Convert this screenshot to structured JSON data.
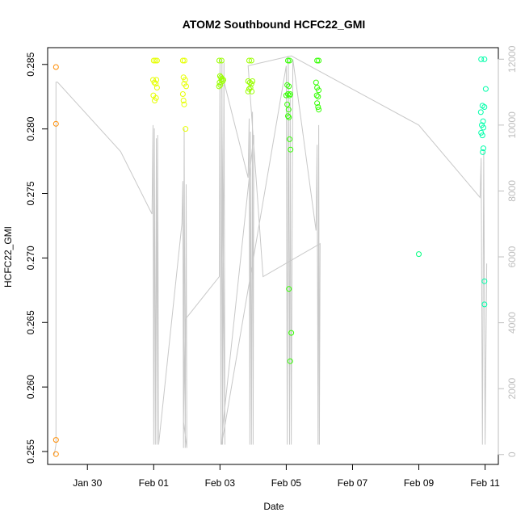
{
  "chart_data": {
    "type": "scatter",
    "title": "ATOM2 Southbound HCFC22_GMI",
    "xlabel": "Date",
    "ylabel": "HCFC22_GMI",
    "x_unit": "days",
    "x_ticks": [
      {
        "value": 30,
        "label": "Jan 30"
      },
      {
        "value": 32,
        "label": "Feb 01"
      },
      {
        "value": 34,
        "label": "Feb 03"
      },
      {
        "value": 36,
        "label": "Feb 05"
      },
      {
        "value": 38,
        "label": "Feb 07"
      },
      {
        "value": 40,
        "label": "Feb 09"
      },
      {
        "value": 42,
        "label": "Feb 11"
      }
    ],
    "xlim": [
      28.8,
      42.4
    ],
    "ylim": [
      0.254,
      0.2863
    ],
    "y_ticks": [
      0.255,
      0.26,
      0.265,
      0.27,
      0.275,
      0.28,
      0.285
    ],
    "y_tick_labels": [
      "0.255",
      "0.260",
      "0.265",
      "0.270",
      "0.275",
      "0.280",
      "0.285"
    ],
    "y2lim": [
      -300,
      12350
    ],
    "y2_ticks": [
      0,
      2000,
      4000,
      6000,
      8000,
      10000,
      12000
    ],
    "y2_tick_labels": [
      "0",
      "2000",
      "4000",
      "6000",
      "8000",
      "10000",
      "12000"
    ],
    "grid": false,
    "series": [
      {
        "color": "#ff8c00",
        "points": [
          [
            29.05,
            0.2848
          ],
          [
            29.05,
            0.2804
          ],
          [
            29.05,
            0.2559
          ],
          [
            29.05,
            0.2548
          ]
        ]
      },
      {
        "color": "#e6ff00",
        "points": [
          [
            32.0,
            0.2853
          ],
          [
            32.05,
            0.2853
          ],
          [
            32.1,
            0.2853
          ],
          [
            31.98,
            0.2838
          ],
          [
            32.02,
            0.2836
          ],
          [
            32.06,
            0.2835
          ],
          [
            32.1,
            0.2832
          ],
          [
            32.08,
            0.2838
          ],
          [
            31.99,
            0.2826
          ],
          [
            32.03,
            0.2822
          ],
          [
            32.07,
            0.2824
          ],
          [
            32.88,
            0.2853
          ],
          [
            32.93,
            0.2853
          ],
          [
            32.9,
            0.284
          ],
          [
            32.95,
            0.2838
          ],
          [
            32.92,
            0.2835
          ],
          [
            32.98,
            0.2833
          ],
          [
            32.88,
            0.2827
          ],
          [
            32.9,
            0.2822
          ],
          [
            32.92,
            0.2819
          ],
          [
            32.96,
            0.28
          ]
        ]
      },
      {
        "color": "#99ff00",
        "points": [
          [
            33.98,
            0.2853
          ],
          [
            34.05,
            0.2853
          ],
          [
            34.0,
            0.2841
          ],
          [
            34.03,
            0.284
          ],
          [
            34.06,
            0.2839
          ],
          [
            34.1,
            0.2838
          ],
          [
            33.99,
            0.2836
          ],
          [
            34.04,
            0.2838
          ],
          [
            34.08,
            0.2837
          ],
          [
            33.97,
            0.2833
          ],
          [
            34.01,
            0.2834
          ],
          [
            34.88,
            0.2853
          ],
          [
            34.95,
            0.2853
          ],
          [
            34.85,
            0.2837
          ],
          [
            34.9,
            0.2836
          ],
          [
            34.95,
            0.2835
          ],
          [
            34.98,
            0.2837
          ],
          [
            34.92,
            0.2832
          ],
          [
            34.88,
            0.2831
          ],
          [
            34.96,
            0.2829
          ],
          [
            34.85,
            0.2829
          ]
        ]
      },
      {
        "color": "#33ff00",
        "points": [
          [
            36.05,
            0.2853
          ],
          [
            36.1,
            0.2853
          ],
          [
            36.03,
            0.2834
          ],
          [
            36.08,
            0.2833
          ],
          [
            36.0,
            0.2826
          ],
          [
            36.05,
            0.2827
          ],
          [
            36.1,
            0.2826
          ],
          [
            36.03,
            0.2819
          ],
          [
            36.07,
            0.2815
          ],
          [
            36.05,
            0.281
          ],
          [
            36.08,
            0.2809
          ],
          [
            36.1,
            0.2792
          ],
          [
            36.13,
            0.2784
          ],
          [
            36.12,
            0.2827
          ],
          [
            36.08,
            0.2676
          ],
          [
            36.15,
            0.2642
          ],
          [
            36.12,
            0.262
          ],
          [
            36.93,
            0.2853
          ],
          [
            36.98,
            0.2853
          ],
          [
            36.9,
            0.2836
          ],
          [
            36.93,
            0.2832
          ],
          [
            36.98,
            0.283
          ],
          [
            36.92,
            0.2826
          ],
          [
            36.96,
            0.2825
          ],
          [
            36.93,
            0.282
          ],
          [
            36.96,
            0.2817
          ],
          [
            36.98,
            0.2815
          ]
        ]
      },
      {
        "color": "#00ff80",
        "points": [
          [
            40.0,
            0.2703
          ]
        ]
      },
      {
        "color": "#00ffaa",
        "points": [
          [
            41.88,
            0.2854
          ],
          [
            41.98,
            0.2854
          ],
          [
            42.02,
            0.2831
          ],
          [
            41.92,
            0.2818
          ],
          [
            41.98,
            0.2817
          ],
          [
            41.87,
            0.2813
          ],
          [
            41.94,
            0.2806
          ],
          [
            41.9,
            0.2803
          ],
          [
            41.95,
            0.2801
          ],
          [
            41.88,
            0.2797
          ],
          [
            41.92,
            0.2795
          ],
          [
            41.95,
            0.2785
          ],
          [
            41.93,
            0.2782
          ],
          [
            41.98,
            0.2682
          ],
          [
            41.98,
            0.2664
          ]
        ]
      }
    ],
    "altitude_series": {
      "color": "#c8c8c8",
      "x": [
        29.0,
        29.05,
        29.05,
        29.1,
        31.0,
        31.95,
        31.98,
        32.0,
        32.02,
        32.05,
        32.08,
        32.1,
        32.12,
        32.15,
        32.85,
        32.88,
        32.9,
        32.92,
        32.95,
        32.98,
        33.0,
        32.9,
        32.95,
        33.98,
        34.0,
        34.03,
        34.06,
        34.08,
        34.12,
        34.15,
        34.05,
        34.1,
        34.85,
        34.88,
        34.9,
        34.92,
        34.95,
        34.98,
        35.0,
        35.02,
        34.1,
        34.05,
        36.0,
        36.03,
        36.06,
        36.1,
        36.12,
        36.15,
        36.2,
        36.9,
        36.93,
        36.96,
        36.98,
        37.0,
        37.02,
        35.3,
        34.85,
        36.15,
        40.0,
        41.85,
        41.88,
        41.92,
        41.96,
        42.0,
        42.05
      ],
      "y": [
        0,
        300,
        11300,
        11300,
        9200,
        7300,
        10000,
        300,
        9900,
        300,
        9600,
        300,
        9700,
        300,
        7000,
        8300,
        200,
        9900,
        200,
        8200,
        200,
        1000,
        4100,
        5400,
        12000,
        300,
        12000,
        300,
        11900,
        300,
        11500,
        11400,
        8400,
        10200,
        300,
        9800,
        300,
        10400,
        300,
        9700,
        1000,
        300,
        11800,
        300,
        12100,
        300,
        10800,
        300,
        12000,
        6800,
        9400,
        300,
        10000,
        300,
        6400,
        5400,
        11800,
        12100,
        10000,
        7800,
        9000,
        300,
        9200,
        300,
        5800
      ]
    }
  }
}
